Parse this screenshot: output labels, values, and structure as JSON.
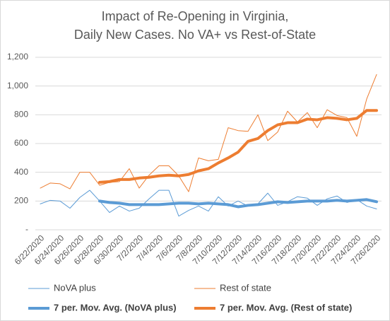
{
  "chart_data": {
    "type": "line",
    "title": [
      "Impact of Re-Opening in Virginia,",
      "Daily New Cases. No VA+ vs Rest-of-State"
    ],
    "categories": [
      "6/22/2020",
      null,
      "6/24/2020",
      null,
      "6/26/2020",
      null,
      "6/28/2020",
      null,
      "6/30/2020",
      null,
      "7/2/2020",
      null,
      "7/4/2020",
      null,
      "7/6/2020",
      null,
      "7/8/2020",
      null,
      "7/10/2020",
      null,
      "7/12/2020",
      null,
      "7/14/2020",
      null,
      "7/16/2020",
      null,
      "7/18/2020",
      null,
      "7/20/2020",
      null,
      "7/22/2020",
      null,
      "7/24/2020",
      null,
      "7/26/2020"
    ],
    "ylim": [
      0,
      1200
    ],
    "yticks": [
      {
        "value": 0,
        "label": "-"
      },
      200,
      400,
      600,
      800,
      {
        "value": 1000,
        "label": "1,000"
      },
      {
        "value": 1200,
        "label": "1,200"
      }
    ],
    "grid": true,
    "series": [
      {
        "name": "NoVA plus",
        "color": "#5b9bd5",
        "line_width": 1,
        "values": [
          180,
          205,
          200,
          150,
          225,
          275,
          200,
          120,
          165,
          130,
          150,
          215,
          275,
          275,
          95,
          135,
          165,
          130,
          230,
          165,
          200,
          165,
          180,
          255,
          170,
          195,
          230,
          220,
          170,
          215,
          235,
          190,
          210,
          165,
          145
        ]
      },
      {
        "name": "Rest of state",
        "color": "#ed7d31",
        "line_width": 1,
        "values": [
          290,
          325,
          320,
          285,
          400,
          400,
          310,
          330,
          335,
          425,
          290,
          380,
          445,
          445,
          375,
          265,
          500,
          480,
          490,
          710,
          690,
          685,
          800,
          620,
          680,
          825,
          750,
          815,
          710,
          835,
          795,
          780,
          650,
          910,
          1080
        ]
      },
      {
        "name": "7 per. Mov. Avg. (NoVA plus)",
        "color": "#5b9bd5",
        "line_width": 4,
        "values": [
          null,
          null,
          null,
          null,
          null,
          null,
          200,
          190,
          185,
          175,
          175,
          175,
          175,
          180,
          185,
          185,
          180,
          185,
          180,
          175,
          160,
          170,
          175,
          185,
          195,
          190,
          195,
          200,
          200,
          200,
          205,
          200,
          205,
          210,
          195
        ]
      },
      {
        "name": "7 per. Mov. Avg. (Rest of state)",
        "color": "#ed7d31",
        "line_width": 4,
        "values": [
          null,
          null,
          null,
          null,
          null,
          null,
          330,
          335,
          350,
          350,
          360,
          365,
          375,
          380,
          375,
          385,
          410,
          425,
          465,
          500,
          540,
          615,
          635,
          690,
          730,
          745,
          745,
          770,
          765,
          780,
          775,
          765,
          775,
          830,
          830
        ]
      }
    ]
  }
}
